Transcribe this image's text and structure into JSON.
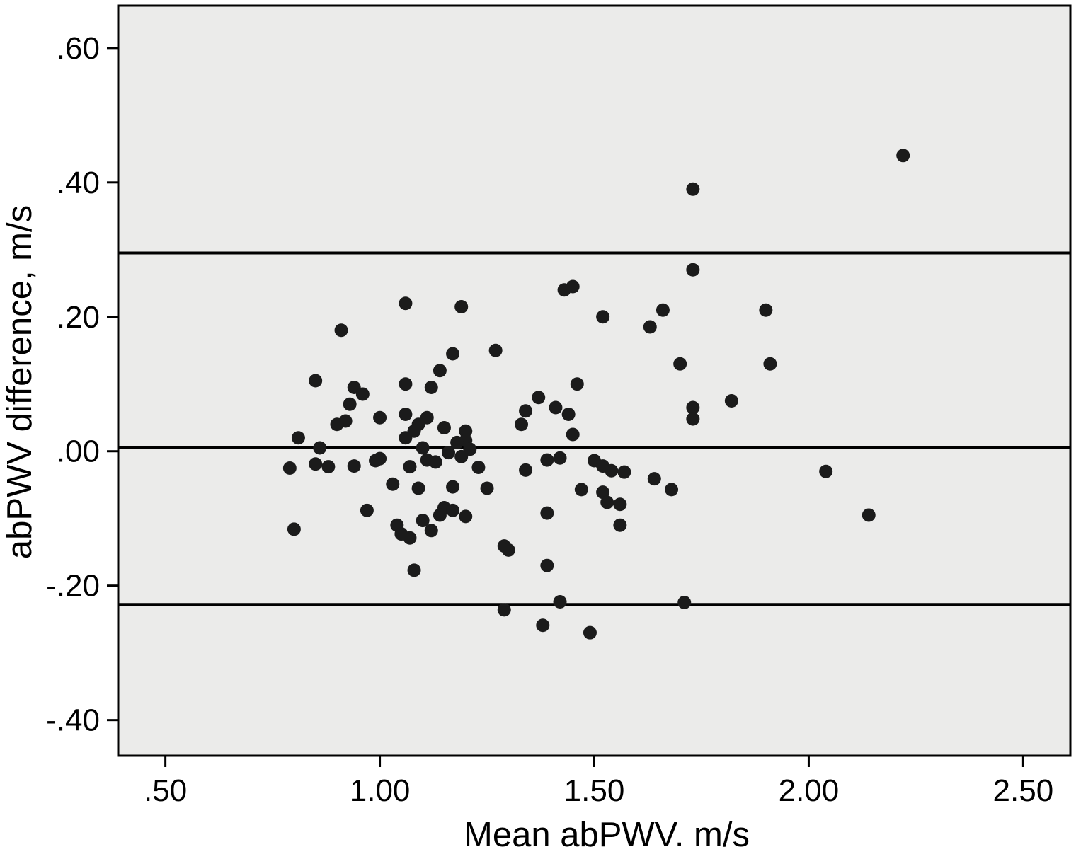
{
  "figure": {
    "type_description": "Bland-Altman scatter plot"
  },
  "chart_data": {
    "type": "scatter",
    "title": "",
    "xlabel": "Mean abPWV. m/s",
    "ylabel": "abPWV difference, m/s",
    "xlim": [
      0.39,
      2.61
    ],
    "ylim": [
      -0.453,
      0.663
    ],
    "grid": false,
    "legend": "none",
    "plot_background": "#ebebea",
    "point_color": "#1b1b1b",
    "line_color": "#000000",
    "x_ticks": [
      0.5,
      1.0,
      1.5,
      2.0,
      2.5
    ],
    "x_tick_labels": [
      ".50",
      "1.00",
      "1.50",
      "2.00",
      "2.50"
    ],
    "y_ticks": [
      0.6,
      0.4,
      0.2,
      0.0,
      -0.2,
      -0.4
    ],
    "y_tick_labels": [
      ".60",
      ".40",
      ".20",
      ".00",
      "-.20",
      "-.40"
    ],
    "reference_lines": [
      {
        "name": "upper-limit-of-agreement",
        "y": 0.295
      },
      {
        "name": "mean-difference",
        "y": 0.005
      },
      {
        "name": "lower-limit-of-agreement",
        "y": -0.228
      }
    ],
    "points": [
      [
        2.22,
        0.44
      ],
      [
        1.73,
        0.39
      ],
      [
        1.73,
        0.27
      ],
      [
        1.43,
        0.24
      ],
      [
        1.45,
        0.245
      ],
      [
        1.06,
        0.22
      ],
      [
        1.19,
        0.215
      ],
      [
        1.52,
        0.2
      ],
      [
        1.66,
        0.21
      ],
      [
        1.9,
        0.21
      ],
      [
        1.63,
        0.185
      ],
      [
        0.91,
        0.18
      ],
      [
        1.17,
        0.145
      ],
      [
        1.27,
        0.15
      ],
      [
        1.7,
        0.13
      ],
      [
        1.91,
        0.13
      ],
      [
        1.14,
        0.12
      ],
      [
        0.85,
        0.105
      ],
      [
        1.06,
        0.1
      ],
      [
        1.12,
        0.095
      ],
      [
        1.46,
        0.1
      ],
      [
        0.94,
        0.095
      ],
      [
        0.96,
        0.085
      ],
      [
        1.37,
        0.08
      ],
      [
        1.82,
        0.075
      ],
      [
        1.41,
        0.065
      ],
      [
        0.93,
        0.07
      ],
      [
        1.73,
        0.065
      ],
      [
        1.34,
        0.06
      ],
      [
        1.44,
        0.055
      ],
      [
        1.06,
        0.055
      ],
      [
        1.11,
        0.05
      ],
      [
        1.0,
        0.05
      ],
      [
        0.92,
        0.045
      ],
      [
        0.9,
        0.04
      ],
      [
        1.09,
        0.04
      ],
      [
        1.73,
        0.048
      ],
      [
        1.33,
        0.04
      ],
      [
        1.15,
        0.035
      ],
      [
        1.08,
        0.03
      ],
      [
        1.2,
        0.03
      ],
      [
        1.45,
        0.025
      ],
      [
        1.06,
        0.02
      ],
      [
        1.2,
        0.016
      ],
      [
        1.18,
        0.013
      ],
      [
        1.1,
        0.005
      ],
      [
        1.21,
        0.003
      ],
      [
        0.81,
        0.02
      ],
      [
        0.86,
        0.005
      ],
      [
        1.16,
        -0.002
      ],
      [
        1.19,
        -0.008
      ],
      [
        1.0,
        -0.011
      ],
      [
        1.11,
        -0.013
      ],
      [
        1.13,
        -0.016
      ],
      [
        0.85,
        -0.019
      ],
      [
        0.88,
        -0.023
      ],
      [
        1.07,
        -0.023
      ],
      [
        1.5,
        -0.014
      ],
      [
        1.52,
        -0.022
      ],
      [
        1.54,
        -0.029
      ],
      [
        1.57,
        -0.031
      ],
      [
        1.42,
        -0.01
      ],
      [
        1.39,
        -0.013
      ],
      [
        0.79,
        -0.025
      ],
      [
        0.99,
        -0.014
      ],
      [
        0.94,
        -0.022
      ],
      [
        1.34,
        -0.028
      ],
      [
        1.23,
        -0.024
      ],
      [
        2.04,
        -0.03
      ],
      [
        1.64,
        -0.041
      ],
      [
        1.03,
        -0.049
      ],
      [
        1.09,
        -0.055
      ],
      [
        1.17,
        -0.053
      ],
      [
        1.25,
        -0.055
      ],
      [
        1.47,
        -0.057
      ],
      [
        1.52,
        -0.061
      ],
      [
        1.68,
        -0.057
      ],
      [
        1.53,
        -0.076
      ],
      [
        1.56,
        -0.079
      ],
      [
        0.97,
        -0.088
      ],
      [
        1.15,
        -0.084
      ],
      [
        1.17,
        -0.088
      ],
      [
        1.14,
        -0.095
      ],
      [
        1.2,
        -0.097
      ],
      [
        1.39,
        -0.092
      ],
      [
        2.14,
        -0.095
      ],
      [
        1.1,
        -0.103
      ],
      [
        1.04,
        -0.11
      ],
      [
        1.12,
        -0.118
      ],
      [
        0.8,
        -0.116
      ],
      [
        1.05,
        -0.123
      ],
      [
        1.07,
        -0.129
      ],
      [
        1.56,
        -0.11
      ],
      [
        1.29,
        -0.141
      ],
      [
        1.3,
        -0.147
      ],
      [
        1.39,
        -0.17
      ],
      [
        1.08,
        -0.177
      ],
      [
        1.42,
        -0.224
      ],
      [
        1.71,
        -0.225
      ],
      [
        1.29,
        -0.236
      ],
      [
        1.38,
        -0.259
      ],
      [
        1.49,
        -0.27
      ]
    ]
  }
}
